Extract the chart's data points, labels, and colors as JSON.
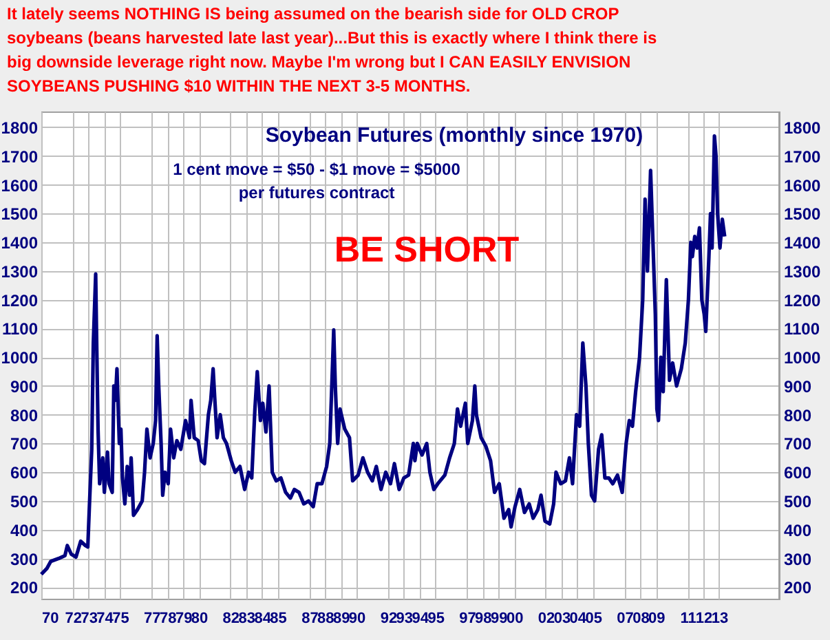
{
  "chart_data": {
    "type": "line",
    "title": "Soybean Futures (monthly since 1970)",
    "subtitle": "1 cent move = $50 - $1 move = $5000 per futures contract",
    "annotations": [
      "It lately seems NOTHING IS being assumed on the bearish side for OLD CROP soybeans (beans harvested late last year)...But this is exactly where I think there is big downside leverage right now. Maybe I'm wrong but I CAN EASILY ENVISION SOYBEANS PUSHING $10 WITHIN THE NEXT 3-5 MONTHS.",
      "BE SHORT"
    ],
    "series": [
      {
        "color": "#000080",
        "x": [
          1970.0,
          1970.35,
          1970.6,
          1971.1,
          1971.5,
          1971.65,
          1971.9,
          1972.2,
          1972.5,
          1972.8,
          1972.95,
          1973.05,
          1973.2,
          1973.3,
          1973.45,
          1973.5,
          1973.6,
          1973.7,
          1973.9,
          1974.0,
          1974.2,
          1974.3,
          1974.5,
          1974.6,
          1974.7,
          1974.8,
          1974.95,
          1975.05,
          1975.15,
          1975.3,
          1975.45,
          1975.6,
          1975.7,
          1975.85,
          1976.1,
          1976.4,
          1976.55,
          1976.7,
          1976.9,
          1977.1,
          1977.25,
          1977.35,
          1977.45,
          1977.6,
          1977.7,
          1977.85,
          1978.05,
          1978.2,
          1978.4,
          1978.6,
          1978.85,
          1979.15,
          1979.4,
          1979.5,
          1979.7,
          1979.95,
          1980.15,
          1980.35,
          1980.6,
          1980.75,
          1980.9,
          1981.0,
          1981.15,
          1981.35,
          1981.55,
          1981.75,
          1982.05,
          1982.3,
          1982.6,
          1982.9,
          1983.15,
          1983.35,
          1983.55,
          1983.7,
          1983.9,
          1984.05,
          1984.25,
          1984.45,
          1984.65,
          1984.9,
          1985.2,
          1985.5,
          1985.8,
          1986.05,
          1986.35,
          1986.65,
          1986.95,
          1987.25,
          1987.5,
          1987.8,
          1988.1,
          1988.3,
          1988.55,
          1988.65,
          1988.8,
          1988.95,
          1989.25,
          1989.55,
          1989.75,
          1990.1,
          1990.4,
          1990.7,
          1991.0,
          1991.25,
          1991.55,
          1991.85,
          1992.15,
          1992.4,
          1992.7,
          1993.0,
          1993.3,
          1993.6,
          1993.7,
          1993.85,
          1994.15,
          1994.45,
          1994.65,
          1994.9,
          1995.15,
          1995.6,
          1995.9,
          1996.2,
          1996.4,
          1996.6,
          1996.9,
          1997.05,
          1997.35,
          1997.5,
          1997.6,
          1997.9,
          1998.2,
          1998.5,
          1998.75,
          1999.05,
          1999.35,
          1999.65,
          1999.8,
          2000.05,
          2000.35,
          2000.65,
          2000.95,
          2001.2,
          2001.5,
          2001.7,
          2001.95,
          2002.25,
          2002.5,
          2002.65,
          2002.95,
          2003.25,
          2003.5,
          2003.7,
          2003.95,
          2004.15,
          2004.35,
          2004.55,
          2004.7,
          2004.9,
          2005.1,
          2005.35,
          2005.55,
          2005.75,
          2006.0,
          2006.25,
          2006.55,
          2006.85,
          2007.1,
          2007.3,
          2007.5,
          2007.7,
          2007.95,
          2008.15,
          2008.3,
          2008.45,
          2008.65,
          2008.8,
          2008.95,
          2009.05,
          2009.15,
          2009.3,
          2009.45,
          2009.65,
          2009.85,
          2010.05,
          2010.3,
          2010.6,
          2010.85,
          2011.05,
          2011.2,
          2011.3,
          2011.45,
          2011.6,
          2011.75,
          2011.9,
          2012.05,
          2012.15,
          2012.35,
          2012.45,
          2012.55,
          2012.7,
          2012.8,
          2012.9,
          2013.05,
          2013.2,
          2013.35
        ],
        "values": [
          245,
          265,
          290,
          300,
          310,
          345,
          315,
          305,
          360,
          345,
          340,
          480,
          680,
          1050,
          1290,
          1100,
          750,
          560,
          650,
          530,
          670,
          560,
          530,
          900,
          850,
          960,
          700,
          750,
          580,
          490,
          620,
          520,
          650,
          450,
          470,
          500,
          600,
          750,
          650,
          700,
          780,
          1075,
          900,
          700,
          520,
          600,
          560,
          750,
          650,
          710,
          680,
          780,
          720,
          850,
          720,
          710,
          640,
          630,
          800,
          850,
          960,
          860,
          720,
          800,
          720,
          700,
          640,
          600,
          620,
          540,
          600,
          580,
          820,
          950,
          780,
          840,
          740,
          900,
          600,
          570,
          580,
          530,
          510,
          540,
          530,
          490,
          500,
          480,
          560,
          560,
          620,
          700,
          1095,
          900,
          700,
          820,
          750,
          720,
          570,
          590,
          650,
          600,
          570,
          620,
          540,
          600,
          560,
          630,
          540,
          580,
          590,
          700,
          640,
          700,
          660,
          700,
          600,
          540,
          560,
          590,
          650,
          700,
          820,
          760,
          840,
          700,
          780,
          900,
          800,
          720,
          690,
          640,
          530,
          560,
          440,
          470,
          410,
          480,
          540,
          460,
          490,
          440,
          470,
          520,
          430,
          420,
          490,
          600,
          560,
          570,
          650,
          560,
          800,
          760,
          1050,
          900,
          700,
          520,
          500,
          680,
          730,
          580,
          580,
          560,
          590,
          530,
          700,
          780,
          760,
          880,
          1000,
          1200,
          1550,
          1300,
          1650,
          1400,
          1150,
          820,
          780,
          1000,
          880,
          1270,
          920,
          980,
          900,
          960,
          1050,
          1200,
          1400,
          1350,
          1420,
          1380,
          1450,
          1200,
          1150,
          1090,
          1350,
          1500,
          1380,
          1770,
          1700,
          1500,
          1380,
          1480,
          1420
        ]
      }
    ],
    "xlim": [
      1970,
      2016.8
    ],
    "xticks": [
      {
        "value": 1970,
        "label": "70"
      },
      {
        "value": 1972,
        "label": "72"
      },
      {
        "value": 1973,
        "label": "73"
      },
      {
        "value": 1974,
        "label": "74"
      },
      {
        "value": 1975,
        "label": "75"
      },
      {
        "value": 1977,
        "label": "77"
      },
      {
        "value": 1978,
        "label": "78"
      },
      {
        "value": 1979,
        "label": "79"
      },
      {
        "value": 1980,
        "label": "80"
      },
      {
        "value": 1982,
        "label": "82"
      },
      {
        "value": 1983,
        "label": "83"
      },
      {
        "value": 1984,
        "label": "84"
      },
      {
        "value": 1985,
        "label": "85"
      },
      {
        "value": 1987,
        "label": "87"
      },
      {
        "value": 1988,
        "label": "88"
      },
      {
        "value": 1989,
        "label": "89"
      },
      {
        "value": 1990,
        "label": "90"
      },
      {
        "value": 1992,
        "label": "92"
      },
      {
        "value": 1993,
        "label": "93"
      },
      {
        "value": 1994,
        "label": "94"
      },
      {
        "value": 1995,
        "label": "95"
      },
      {
        "value": 1997,
        "label": "97"
      },
      {
        "value": 1998,
        "label": "98"
      },
      {
        "value": 1999,
        "label": "99"
      },
      {
        "value": 2000,
        "label": "00"
      },
      {
        "value": 2002,
        "label": "02"
      },
      {
        "value": 2003,
        "label": "03"
      },
      {
        "value": 2004,
        "label": "04"
      },
      {
        "value": 2005,
        "label": "05"
      },
      {
        "value": 2007,
        "label": "07"
      },
      {
        "value": 2008,
        "label": "08"
      },
      {
        "value": 2009,
        "label": "09"
      },
      {
        "value": 2011,
        "label": "11"
      },
      {
        "value": 2012,
        "label": "12"
      },
      {
        "value": 2013,
        "label": "13"
      }
    ],
    "ylim": [
      160,
      1855
    ],
    "yticks": [
      200,
      300,
      400,
      500,
      600,
      700,
      800,
      900,
      1000,
      1100,
      1200,
      1300,
      1400,
      1500,
      1600,
      1700,
      1800
    ],
    "y2lim": [
      160,
      1855
    ],
    "y2ticks": [
      200,
      300,
      400,
      500,
      600,
      700,
      800,
      900,
      1000,
      1100,
      1200,
      1300,
      1400,
      1500,
      1600,
      1700,
      1800
    ],
    "grid": true
  }
}
